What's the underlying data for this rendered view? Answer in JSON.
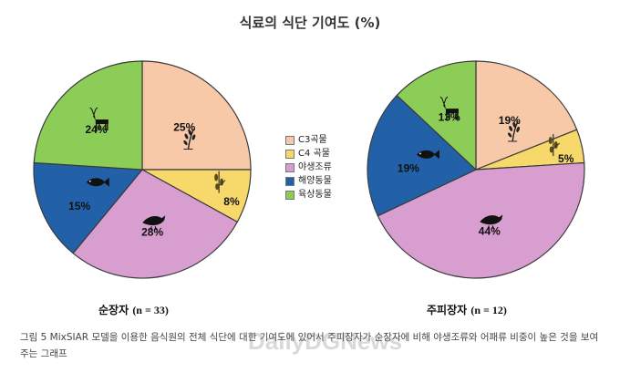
{
  "title": "식료의 식단 기여도 (%)",
  "legend": {
    "items": [
      {
        "label": "C3곡물",
        "color": "#f7c9a9"
      },
      {
        "label": "C4 곡물",
        "color": "#f7d86b"
      },
      {
        "label": "야생조류",
        "color": "#d99ed0"
      },
      {
        "label": "해양동물",
        "color": "#2261a8"
      },
      {
        "label": "육상동물",
        "color": "#8ccd57"
      }
    ]
  },
  "charts": [
    {
      "caption_label": "순장자",
      "caption_n": "(n = 33)"
    },
    {
      "caption_label": "주피장자",
      "caption_n": "(n = 12)"
    }
  ],
  "chart_data": [
    {
      "type": "pie",
      "categories": [
        "C3곡물",
        "C4 곡물",
        "야생조류",
        "해양동물",
        "육상동물"
      ],
      "values": [
        25,
        8,
        28,
        15,
        24
      ],
      "labels": [
        "25%",
        "8%",
        "28%",
        "15%",
        "24%"
      ],
      "title": "순장자 (n = 33)"
    },
    {
      "type": "pie",
      "categories": [
        "C3곡물",
        "C4 곡물",
        "야생조류",
        "해양동물",
        "육상동물"
      ],
      "values": [
        19,
        5,
        44,
        19,
        13
      ],
      "labels": [
        "19%",
        "5%",
        "44%",
        "19%",
        "13%"
      ],
      "title": "주피장자 (n = 12)"
    }
  ],
  "figure_caption": "그림 5  MixSIAR 모델을 이용한 음식원의 전체 식단에 대한 기여도에 있어서 주피장자가 순장자에 비해 야생조류와 어패류 비중이 높은 것을 보여 주는 그래프",
  "watermark": "DailyDGNews"
}
